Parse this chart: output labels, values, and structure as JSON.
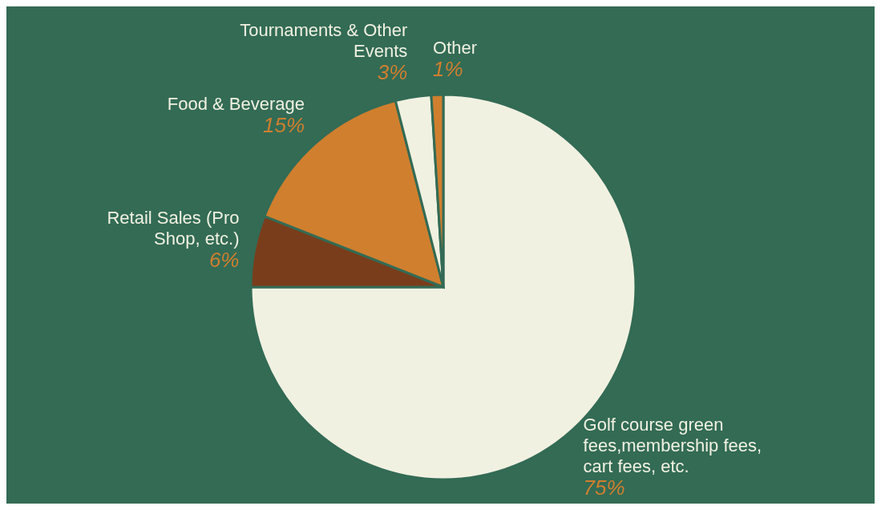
{
  "chart_data": {
    "type": "pie",
    "categories": [
      "Golf course green fees,membership fees, cart fees, etc.",
      "Retail Sales (Pro Shop, etc.)",
      "Food & Beverage",
      "Tournaments & Other Events",
      "Other"
    ],
    "values": [
      75,
      6,
      15,
      3,
      1
    ],
    "colors": [
      "#f1f1e1",
      "#7a3d1b",
      "#d07f2e",
      "#f1f1e1",
      "#d07f2e"
    ],
    "value_labels": [
      "75%",
      "6%",
      "15%",
      "3%",
      "1%"
    ]
  }
}
